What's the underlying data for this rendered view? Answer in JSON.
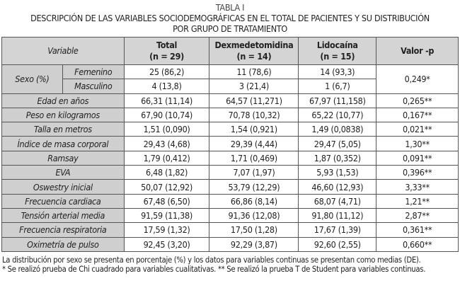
{
  "caption": {
    "label": "TABLA I",
    "title_line1": "DESCRIPCIÓN DE LAS VARIABLES SOCIODEMOGRÁFICAS EN EL TOTAL DE PACIENTES Y SU DISTRIBUCIÓN",
    "title_line2": "POR GRUPO DE TRATAMIENTO"
  },
  "header": {
    "variable": "Variable",
    "total": "Total",
    "total_n": "(n = 29)",
    "dex": "Dexmedetomidina",
    "dex_n": "(n = 14)",
    "lido": "Lidocaína",
    "lido_n": "(n = 15)",
    "p": "Valor -p"
  },
  "sexo": {
    "label": "Sexo (%)",
    "p": "0,249*",
    "rows": [
      {
        "sub": "Femenino",
        "total": "25 (86,2)",
        "dex": "11 (78,6)",
        "lido": "14 (93,3)"
      },
      {
        "sub": "Masculino",
        "total": "4 (13,8)",
        "dex": "3 (21,4)",
        "lido": "1 (6,7)"
      }
    ]
  },
  "rows": [
    {
      "label": "Edad en años",
      "total": "66,31 (11,14)",
      "dex": "64,57 (11,271)",
      "lido": "67,97 (11,158)",
      "p": "0,265**"
    },
    {
      "label": "Peso en kilogramos",
      "total": "67,90 (10,74)",
      "dex": "70,78 (10,32)",
      "lido": "65,22 (10,77)",
      "p": "0,167**"
    },
    {
      "label": "Talla en metros",
      "total": "1,51 (0,090)",
      "dex": "1,54 (0,921)",
      "lido": "1,49 (0,0838)",
      "p": "0,021**"
    },
    {
      "label": "Índice de masa corporal",
      "total": "29,43 (4,68)",
      "dex": "29,39 (4,44)",
      "lido": "29,47 (5,05)",
      "p": "1,30**"
    },
    {
      "label": "Ramsay",
      "total": "1,79 (0,412)",
      "dex": "1,71 (0,469)",
      "lido": "1,87 (0,352)",
      "p": "0,091**"
    },
    {
      "label": "EVA",
      "total": "6,48 (1,82)",
      "dex": "7,07 (1,97)",
      "lido": "5,93 (1,53)",
      "p": "0,396**"
    },
    {
      "label": "Oswestry inicial",
      "total": "50,07 (12,92)",
      "dex": "53,79 (12,29)",
      "lido": "46,60 (12,93)",
      "p": "3,33**"
    },
    {
      "label": "Frecuencia cardiaca",
      "total": "67,48 (6,50)",
      "dex": "66,86 (8,14)",
      "lido": "68,07 (4,71)",
      "p": "1,21**"
    },
    {
      "label": "Tensión arterial media",
      "total": "91,59 (11,38)",
      "dex": "91,36 (12,08)",
      "lido": "91,80 (11,12)",
      "p": "2,87**"
    },
    {
      "label": "Frecuencia respiratoria",
      "total": "17,59 (1,32)",
      "dex": "17,50 (1,28)",
      "lido": "17,67 (1,39)",
      "p": "0,361**"
    },
    {
      "label": "Oximetría de pulso",
      "total": "92,45 (3,20)",
      "dex": "92,29 (3,87)",
      "lido": "92,60 (2,55)",
      "p": "0,660**"
    }
  ],
  "footnote": {
    "line1": "La distribución por sexo se presenta en porcentaje (%) y los datos para variables continuas se presentan como medias (DE).",
    "line2": "* Se realizó prueba de Chi cuadrado para variables cualitativas. ** Se realizó la prueba T de Student para variables continuas."
  }
}
